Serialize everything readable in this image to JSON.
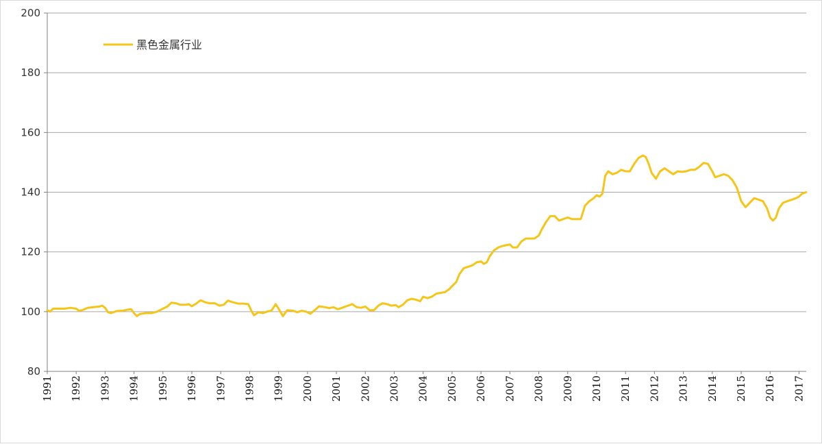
{
  "chart_data": {
    "type": "line",
    "title": "",
    "xlabel": "",
    "ylabel": "",
    "ylim": [
      80,
      200
    ],
    "yticks": [
      "80",
      "100",
      "120",
      "140",
      "160",
      "180",
      "200"
    ],
    "xticks": [
      "1991",
      "1992",
      "1993",
      "1994",
      "1995",
      "1996",
      "1997",
      "1998",
      "1999",
      "2000",
      "2001",
      "2002",
      "2003",
      "2004",
      "2005",
      "2006",
      "2007",
      "2008",
      "2009",
      "2010",
      "2011",
      "2012",
      "2013",
      "2014",
      "2015",
      "2016",
      "2017"
    ],
    "xlim": [
      1991.0,
      2017.25
    ],
    "grid": "horizontal",
    "legend_position": "top-left",
    "series": [
      {
        "name": "黑色金属行业",
        "color": "#f5c518",
        "points": [
          [
            1991.0,
            100.5
          ],
          [
            1991.1,
            100.0
          ],
          [
            1991.2,
            101.0
          ],
          [
            1991.4,
            101.0
          ],
          [
            1991.6,
            101.0
          ],
          [
            1991.8,
            101.3
          ],
          [
            1992.0,
            101.0
          ],
          [
            1992.1,
            100.3
          ],
          [
            1992.2,
            100.5
          ],
          [
            1992.4,
            101.3
          ],
          [
            1992.6,
            101.5
          ],
          [
            1992.8,
            101.7
          ],
          [
            1992.9,
            102.0
          ],
          [
            1993.0,
            101.3
          ],
          [
            1993.1,
            99.8
          ],
          [
            1993.2,
            99.5
          ],
          [
            1993.4,
            100.2
          ],
          [
            1993.6,
            100.3
          ],
          [
            1993.8,
            100.7
          ],
          [
            1993.9,
            100.8
          ],
          [
            1994.0,
            99.5
          ],
          [
            1994.1,
            98.5
          ],
          [
            1994.2,
            99.2
          ],
          [
            1994.4,
            99.5
          ],
          [
            1994.6,
            99.5
          ],
          [
            1994.8,
            100.0
          ],
          [
            1995.0,
            101.0
          ],
          [
            1995.15,
            101.7
          ],
          [
            1995.3,
            103.0
          ],
          [
            1995.45,
            102.8
          ],
          [
            1995.6,
            102.3
          ],
          [
            1995.8,
            102.3
          ],
          [
            1995.9,
            102.5
          ],
          [
            1996.0,
            101.8
          ],
          [
            1996.15,
            102.7
          ],
          [
            1996.3,
            103.8
          ],
          [
            1996.45,
            103.2
          ],
          [
            1996.6,
            102.8
          ],
          [
            1996.8,
            102.8
          ],
          [
            1996.95,
            102.0
          ],
          [
            1997.1,
            102.3
          ],
          [
            1997.25,
            103.7
          ],
          [
            1997.4,
            103.2
          ],
          [
            1997.6,
            102.7
          ],
          [
            1997.8,
            102.7
          ],
          [
            1997.95,
            102.5
          ],
          [
            1998.05,
            100.5
          ],
          [
            1998.15,
            98.8
          ],
          [
            1998.3,
            99.8
          ],
          [
            1998.45,
            99.5
          ],
          [
            1998.6,
            100.0
          ],
          [
            1998.75,
            100.3
          ],
          [
            1998.9,
            102.5
          ],
          [
            1999.0,
            101.0
          ],
          [
            1999.15,
            98.5
          ],
          [
            1999.3,
            100.5
          ],
          [
            1999.5,
            100.3
          ],
          [
            1999.65,
            99.8
          ],
          [
            1999.8,
            100.3
          ],
          [
            1999.95,
            100.0
          ],
          [
            2000.1,
            99.3
          ],
          [
            2000.25,
            100.5
          ],
          [
            2000.4,
            101.8
          ],
          [
            2000.6,
            101.5
          ],
          [
            2000.75,
            101.2
          ],
          [
            2000.9,
            101.5
          ],
          [
            2001.05,
            100.8
          ],
          [
            2001.2,
            101.3
          ],
          [
            2001.4,
            102.0
          ],
          [
            2001.55,
            102.5
          ],
          [
            2001.7,
            101.5
          ],
          [
            2001.85,
            101.3
          ],
          [
            2002.0,
            101.7
          ],
          [
            2002.15,
            100.5
          ],
          [
            2002.3,
            100.5
          ],
          [
            2002.45,
            102.0
          ],
          [
            2002.6,
            102.8
          ],
          [
            2002.75,
            102.5
          ],
          [
            2002.9,
            102.0
          ],
          [
            2003.05,
            102.2
          ],
          [
            2003.15,
            101.5
          ],
          [
            2003.3,
            102.3
          ],
          [
            2003.45,
            103.8
          ],
          [
            2003.6,
            104.3
          ],
          [
            2003.75,
            104.0
          ],
          [
            2003.9,
            103.5
          ],
          [
            2004.0,
            105.0
          ],
          [
            2004.15,
            104.5
          ],
          [
            2004.3,
            105.0
          ],
          [
            2004.45,
            106.0
          ],
          [
            2004.6,
            106.3
          ],
          [
            2004.75,
            106.5
          ],
          [
            2004.9,
            107.5
          ],
          [
            2005.05,
            109.0
          ],
          [
            2005.15,
            110.0
          ],
          [
            2005.25,
            112.5
          ],
          [
            2005.4,
            114.5
          ],
          [
            2005.55,
            115.0
          ],
          [
            2005.7,
            115.5
          ],
          [
            2005.85,
            116.5
          ],
          [
            2006.0,
            116.8
          ],
          [
            2006.1,
            116.0
          ],
          [
            2006.2,
            116.5
          ],
          [
            2006.3,
            118.5
          ],
          [
            2006.45,
            120.5
          ],
          [
            2006.6,
            121.5
          ],
          [
            2006.75,
            122.0
          ],
          [
            2006.9,
            122.3
          ],
          [
            2007.0,
            122.5
          ],
          [
            2007.1,
            121.5
          ],
          [
            2007.25,
            121.5
          ],
          [
            2007.4,
            123.5
          ],
          [
            2007.55,
            124.5
          ],
          [
            2007.7,
            124.5
          ],
          [
            2007.85,
            124.5
          ],
          [
            2008.0,
            125.5
          ],
          [
            2008.1,
            127.5
          ],
          [
            2008.25,
            130.0
          ],
          [
            2008.4,
            132.0
          ],
          [
            2008.55,
            132.0
          ],
          [
            2008.7,
            130.5
          ],
          [
            2008.85,
            131.0
          ],
          [
            2009.0,
            131.5
          ],
          [
            2009.15,
            131.0
          ],
          [
            2009.3,
            131.0
          ],
          [
            2009.45,
            131.0
          ],
          [
            2009.6,
            135.5
          ],
          [
            2009.75,
            137.0
          ],
          [
            2009.9,
            138.0
          ],
          [
            2010.0,
            139.0
          ],
          [
            2010.1,
            138.5
          ],
          [
            2010.2,
            139.5
          ],
          [
            2010.3,
            145.5
          ],
          [
            2010.4,
            147.0
          ],
          [
            2010.55,
            146.0
          ],
          [
            2010.7,
            146.5
          ],
          [
            2010.85,
            147.5
          ],
          [
            2011.0,
            147.0
          ],
          [
            2011.15,
            147.0
          ],
          [
            2011.3,
            149.5
          ],
          [
            2011.45,
            151.5
          ],
          [
            2011.6,
            152.3
          ],
          [
            2011.7,
            151.8
          ],
          [
            2011.8,
            149.5
          ],
          [
            2011.9,
            146.5
          ],
          [
            2012.05,
            144.5
          ],
          [
            2012.2,
            147.0
          ],
          [
            2012.35,
            148.0
          ],
          [
            2012.5,
            147.0
          ],
          [
            2012.65,
            146.0
          ],
          [
            2012.8,
            147.0
          ],
          [
            2012.95,
            146.8
          ],
          [
            2013.1,
            147.0
          ],
          [
            2013.25,
            147.5
          ],
          [
            2013.4,
            147.5
          ],
          [
            2013.55,
            148.5
          ],
          [
            2013.7,
            149.8
          ],
          [
            2013.85,
            149.5
          ],
          [
            2014.0,
            147.0
          ],
          [
            2014.1,
            145.0
          ],
          [
            2014.25,
            145.5
          ],
          [
            2014.4,
            146.0
          ],
          [
            2014.55,
            145.5
          ],
          [
            2014.7,
            144.0
          ],
          [
            2014.85,
            141.5
          ],
          [
            2015.0,
            137.0
          ],
          [
            2015.15,
            135.0
          ],
          [
            2015.3,
            136.5
          ],
          [
            2015.45,
            138.0
          ],
          [
            2015.6,
            137.5
          ],
          [
            2015.75,
            137.0
          ],
          [
            2015.9,
            134.5
          ],
          [
            2016.0,
            131.5
          ],
          [
            2016.1,
            130.5
          ],
          [
            2016.2,
            131.5
          ],
          [
            2016.3,
            134.5
          ],
          [
            2016.45,
            136.5
          ],
          [
            2016.6,
            137.0
          ],
          [
            2016.75,
            137.5
          ],
          [
            2016.9,
            138.0
          ],
          [
            2017.0,
            138.5
          ],
          [
            2017.1,
            139.5
          ],
          [
            2017.25,
            140.0
          ]
        ]
      }
    ]
  }
}
